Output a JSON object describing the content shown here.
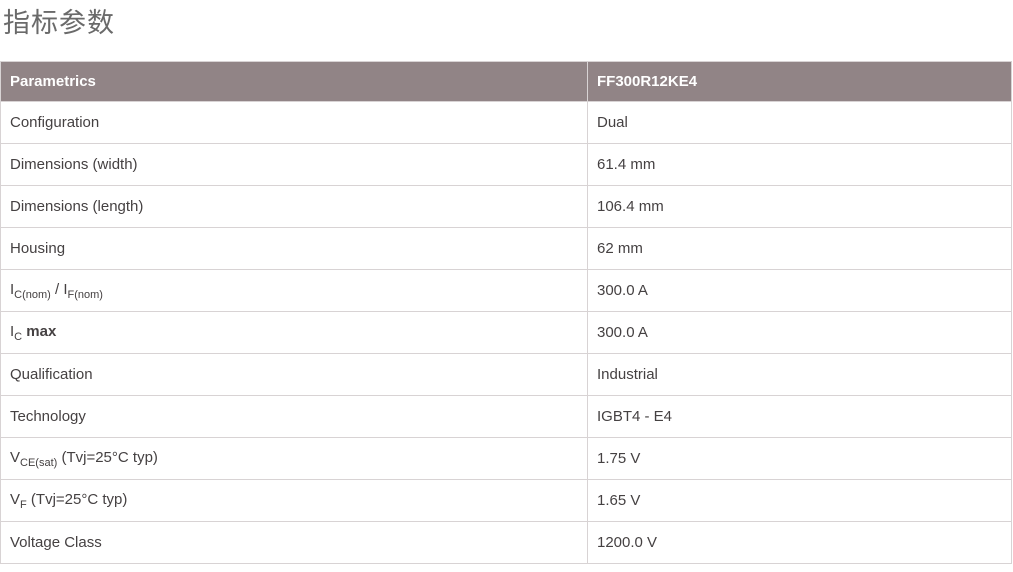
{
  "page": {
    "title": "指标参数"
  },
  "colors": {
    "header_bg": "#918486",
    "header_text": "#ffffff",
    "border": "#d8d3d4",
    "cell_text": "#454142",
    "title_text": "#6a6a6a"
  },
  "table": {
    "header": {
      "param_col": "Parametrics",
      "value_col": "FF300R12KE4"
    },
    "rows": [
      {
        "param": [
          {
            "text": "Configuration"
          }
        ],
        "value": "Dual"
      },
      {
        "param": [
          {
            "text": "Dimensions (width)"
          }
        ],
        "value": "61.4 mm"
      },
      {
        "param": [
          {
            "text": "Dimensions (length)"
          }
        ],
        "value": "106.4 mm"
      },
      {
        "param": [
          {
            "text": "Housing"
          }
        ],
        "value": "62 mm"
      },
      {
        "param": [
          {
            "text": "I"
          },
          {
            "text": "C(nom)",
            "sub": true
          },
          {
            "text": " / I"
          },
          {
            "text": "F(nom)",
            "sub": true
          }
        ],
        "value": "300.0 A"
      },
      {
        "param": [
          {
            "text": "I"
          },
          {
            "text": "C",
            "sub": true
          },
          {
            "text": "  max",
            "bold": true
          }
        ],
        "value": "300.0 A"
      },
      {
        "param": [
          {
            "text": "Qualification"
          }
        ],
        "value": "Industrial"
      },
      {
        "param": [
          {
            "text": "Technology"
          }
        ],
        "value": "IGBT4 - E4"
      },
      {
        "param": [
          {
            "text": "V"
          },
          {
            "text": "CE(sat)",
            "sub": true
          },
          {
            "text": " (Tvj=25°C typ)"
          }
        ],
        "value": "1.75 V"
      },
      {
        "param": [
          {
            "text": "V"
          },
          {
            "text": "F",
            "sub": true
          },
          {
            "text": " (Tvj=25°C typ)"
          }
        ],
        "value": "1.65 V"
      },
      {
        "param": [
          {
            "text": "Voltage Class"
          }
        ],
        "value": "1200.0 V"
      }
    ]
  }
}
